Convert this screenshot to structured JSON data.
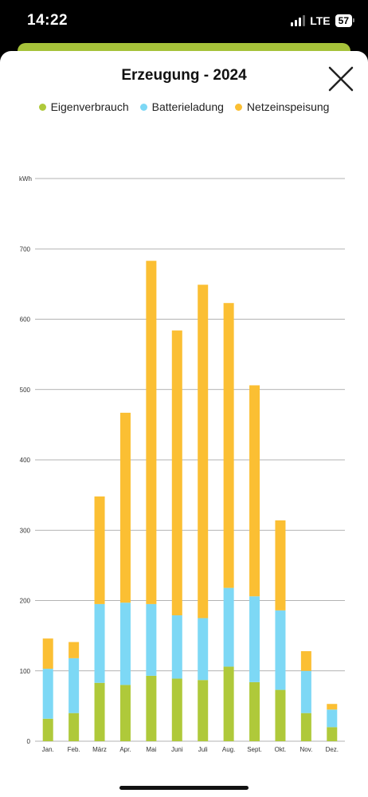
{
  "status_bar": {
    "time": "14:22",
    "network": "LTE",
    "battery": "57"
  },
  "header": {
    "title": "Erzeugung - 2024"
  },
  "icons": {
    "close": "close-icon"
  },
  "colors": {
    "eigenverbrauch": "#afc93a",
    "batterieladung": "#7dd8f5",
    "netzeinspeisung": "#fbbf33",
    "accent": "#a6c23a"
  },
  "chart_data": {
    "type": "bar",
    "stacked": true,
    "title": "Erzeugung - 2024",
    "ylabel": "kWh",
    "xlabel": "",
    "ylim": [
      0,
      800
    ],
    "yticks": [
      0,
      100,
      200,
      300,
      400,
      500,
      600,
      700
    ],
    "grid": true,
    "legend_position": "top",
    "categories": [
      "Jan.",
      "Feb.",
      "März",
      "Apr.",
      "Mai",
      "Juni",
      "Juli",
      "Aug.",
      "Sept.",
      "Okt.",
      "Nov.",
      "Dez."
    ],
    "series": [
      {
        "name": "Eigenverbrauch",
        "color": "#afc93a",
        "values": [
          32,
          40,
          83,
          80,
          93,
          89,
          87,
          106,
          84,
          73,
          40,
          20
        ]
      },
      {
        "name": "Batterieladung",
        "color": "#7dd8f5",
        "values": [
          71,
          78,
          112,
          117,
          102,
          90,
          88,
          112,
          122,
          113,
          60,
          25
        ]
      },
      {
        "name": "Netzeinspeisung",
        "color": "#fbbf33",
        "values": [
          43,
          23,
          153,
          270,
          488,
          405,
          474,
          405,
          300,
          128,
          28,
          8
        ]
      }
    ]
  }
}
